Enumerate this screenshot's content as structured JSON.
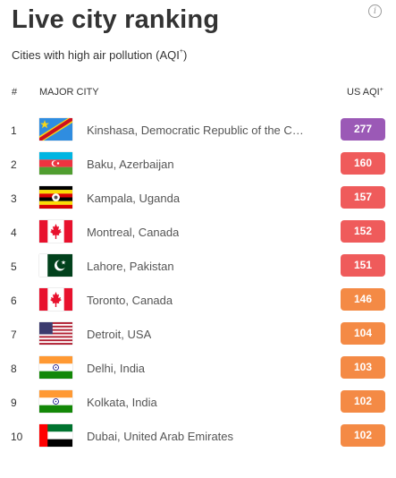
{
  "header": {
    "title": "Live city ranking",
    "subtitle": "Cities with high air pollution (AQI",
    "subtitle_sup": "+",
    "subtitle_end": ")",
    "info_icon": "info-icon"
  },
  "columns": {
    "rank": "#",
    "city": "MAJOR CITY",
    "aqi": "US AQI",
    "aqi_sup": "+"
  },
  "colors": {
    "very_unhealthy": "#9b59b6",
    "unhealthy": "#ef5b5b",
    "sensitive": "#f48a45"
  },
  "rows": [
    {
      "rank": "1",
      "city": "Kinshasa, Democratic Republic of the Congo",
      "aqi": "277",
      "flag": "congo-dr-flag",
      "level": "very_unhealthy"
    },
    {
      "rank": "2",
      "city": "Baku, Azerbaijan",
      "aqi": "160",
      "flag": "azerbaijan-flag",
      "level": "unhealthy"
    },
    {
      "rank": "3",
      "city": "Kampala, Uganda",
      "aqi": "157",
      "flag": "uganda-flag",
      "level": "unhealthy"
    },
    {
      "rank": "4",
      "city": "Montreal, Canada",
      "aqi": "152",
      "flag": "canada-flag",
      "level": "unhealthy"
    },
    {
      "rank": "5",
      "city": "Lahore, Pakistan",
      "aqi": "151",
      "flag": "pakistan-flag",
      "level": "unhealthy"
    },
    {
      "rank": "6",
      "city": "Toronto, Canada",
      "aqi": "146",
      "flag": "canada-flag",
      "level": "sensitive"
    },
    {
      "rank": "7",
      "city": "Detroit, USA",
      "aqi": "104",
      "flag": "usa-flag",
      "level": "sensitive"
    },
    {
      "rank": "8",
      "city": "Delhi, India",
      "aqi": "103",
      "flag": "india-flag",
      "level": "sensitive"
    },
    {
      "rank": "9",
      "city": "Kolkata, India",
      "aqi": "102",
      "flag": "india-flag",
      "level": "sensitive"
    },
    {
      "rank": "10",
      "city": "Dubai, United Arab Emirates",
      "aqi": "102",
      "flag": "uae-flag",
      "level": "sensitive"
    }
  ]
}
